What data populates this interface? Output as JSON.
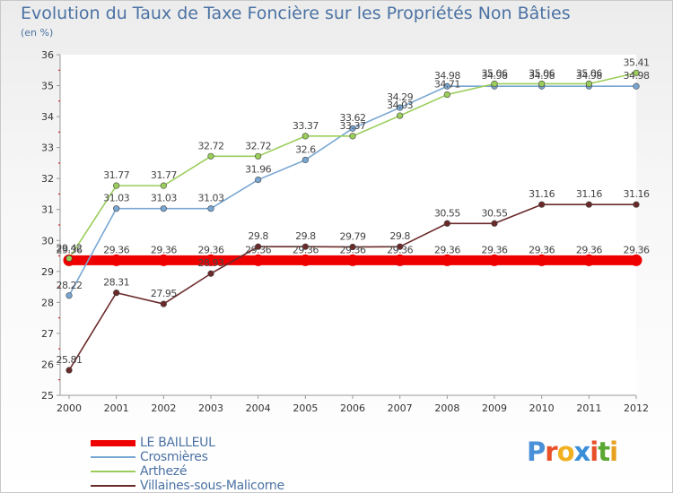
{
  "title": "Evolution du Taux de Taxe Foncière sur les Propriétés Non Bâties",
  "unit": "(en %)",
  "brand": {
    "letters": [
      "P",
      "r",
      "o",
      "x",
      "i",
      "t",
      "i"
    ],
    "colors": [
      "#4a90d9",
      "#e8502a",
      "#f0b020",
      "#3a8fd8",
      "#e8502a",
      "#5aa832",
      "#e8a020"
    ]
  },
  "chart_data": {
    "type": "line",
    "x": [
      "2000",
      "2001",
      "2002",
      "2003",
      "2004",
      "2005",
      "2006",
      "2007",
      "2008",
      "2009",
      "2010",
      "2011",
      "2012"
    ],
    "y_ticks": [
      "25",
      "26",
      "27",
      "28",
      "29",
      "30",
      "31",
      "32",
      "33",
      "34",
      "35",
      "36"
    ],
    "ylim": [
      25,
      36
    ],
    "grid": false,
    "legend_position": "bottom-left",
    "series": [
      {
        "name": "LE BAILLEUL",
        "color": "#ee0000",
        "values": [
          29.36,
          29.36,
          29.36,
          29.36,
          29.36,
          29.36,
          29.36,
          29.36,
          29.36,
          29.36,
          29.36,
          29.36,
          29.36
        ],
        "labels": [
          "29.36",
          "29.36",
          "29.36",
          "29.36",
          "29.36",
          "29.36",
          "29.36",
          "29.36",
          "29.36",
          "29.36",
          "29.36",
          "29.36",
          "29.36"
        ]
      },
      {
        "name": "Crosmières",
        "color": "#79a7d3",
        "values": [
          28.22,
          31.03,
          31.03,
          31.03,
          31.96,
          32.6,
          33.62,
          34.29,
          34.98,
          34.98,
          34.98,
          34.98,
          34.98
        ],
        "labels": [
          "28.22",
          "31.03",
          "31.03",
          "31.03",
          "31.96",
          "32.6",
          "33.62",
          "34.29",
          "34.98",
          "34.98",
          "34.98",
          "34.98",
          "34.98"
        ]
      },
      {
        "name": "Arthezé",
        "color": "#9acd5a",
        "values": [
          29.42,
          31.77,
          31.77,
          32.72,
          32.72,
          33.37,
          33.37,
          34.03,
          34.71,
          35.06,
          35.06,
          35.06,
          35.41
        ],
        "labels": [
          "29.42",
          "31.77",
          "31.77",
          "32.72",
          "32.72",
          "33.37",
          "33.37",
          "34.03",
          "34.71",
          "35.06",
          "35.06",
          "35.06",
          "35.41"
        ]
      },
      {
        "name": "Villaines-sous-Malicorne",
        "color": "#6b2a2a",
        "values": [
          25.81,
          28.31,
          27.95,
          28.93,
          29.8,
          29.8,
          29.79,
          29.8,
          30.55,
          30.55,
          31.16,
          31.16,
          31.16
        ],
        "labels": [
          "25.81",
          "28.31",
          "27.95",
          "28.93",
          "29.8",
          "29.8",
          "29.79",
          "29.8",
          "30.55",
          "30.55",
          "31.16",
          "31.16",
          "31.16"
        ]
      }
    ]
  }
}
